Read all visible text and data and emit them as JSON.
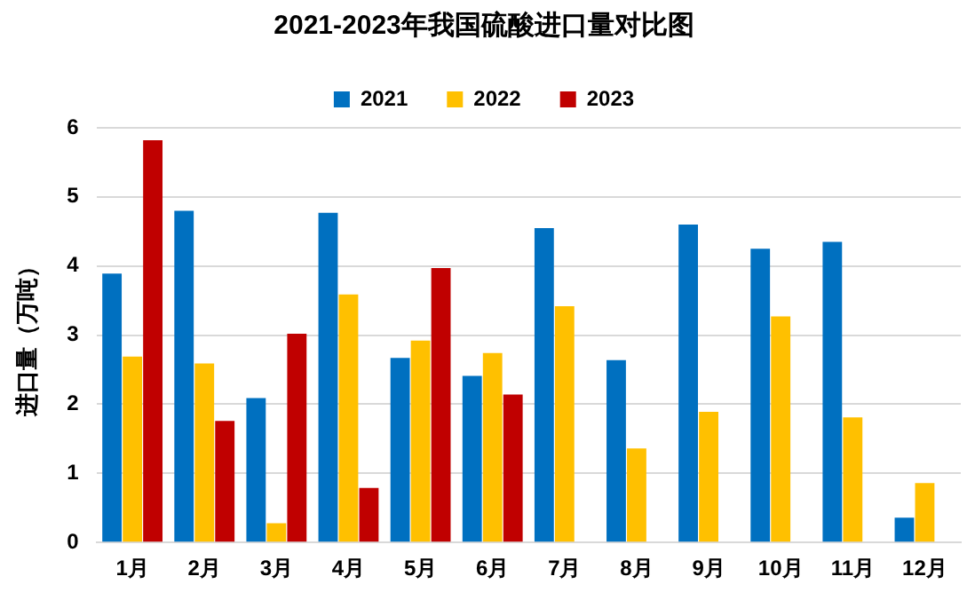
{
  "chart_data": {
    "type": "bar",
    "title": "2021-2023年我国硫酸进口量对比图",
    "ylabel": "进口量（万吨）",
    "categories": [
      "1月",
      "2月",
      "3月",
      "4月",
      "5月",
      "6月",
      "7月",
      "8月",
      "9月",
      "10月",
      "11月",
      "12月"
    ],
    "series": [
      {
        "name": "2021",
        "color": "#0070c0",
        "values": [
          3.89,
          4.8,
          2.09,
          4.77,
          2.67,
          2.41,
          4.55,
          2.64,
          4.6,
          4.25,
          4.35,
          0.36
        ]
      },
      {
        "name": "2022",
        "color": "#ffc000",
        "values": [
          2.69,
          2.59,
          0.28,
          3.59,
          2.92,
          2.74,
          3.42,
          1.36,
          1.89,
          3.27,
          1.81,
          0.86
        ]
      },
      {
        "name": "2023",
        "color": "#c00000",
        "values": [
          5.82,
          1.76,
          3.02,
          0.79,
          3.97,
          2.14,
          null,
          null,
          null,
          null,
          null,
          null
        ]
      }
    ],
    "ylim": [
      0,
      6
    ],
    "yticks": [
      0,
      1,
      2,
      3,
      4,
      5,
      6
    ],
    "grid": "y",
    "legend": "top"
  }
}
